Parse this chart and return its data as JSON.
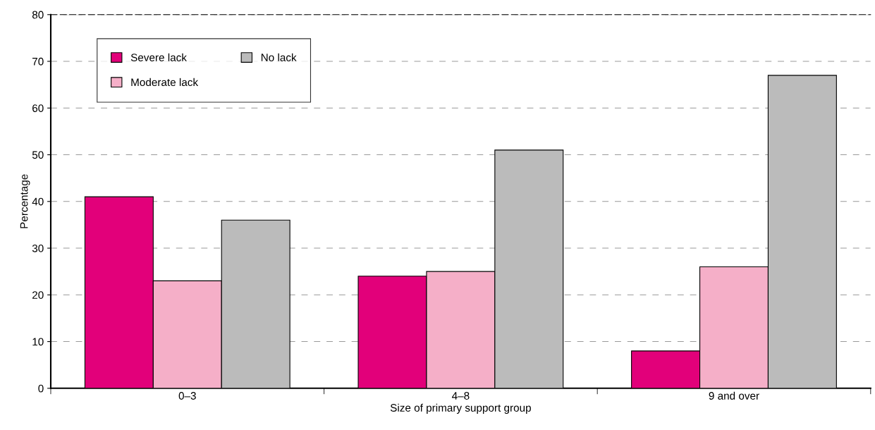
{
  "chart_data": {
    "type": "bar",
    "xlabel": "Size of primary support group",
    "ylabel": "Percentage",
    "categories": [
      "0–3",
      "4–8",
      "9 and over"
    ],
    "series": [
      {
        "name": "Severe lack",
        "color": "#e2007a",
        "values": [
          41,
          24,
          8
        ]
      },
      {
        "name": "Moderate lack",
        "color": "#f5afc8",
        "values": [
          23,
          25,
          26
        ]
      },
      {
        "name": "No lack",
        "color": "#bbbbbb",
        "values": [
          36,
          51,
          67
        ]
      }
    ],
    "ylim": [
      0,
      80
    ],
    "yticks": [
      0,
      10,
      20,
      30,
      40,
      50,
      60,
      70,
      80
    ],
    "grid": "y",
    "legend": "top left"
  }
}
